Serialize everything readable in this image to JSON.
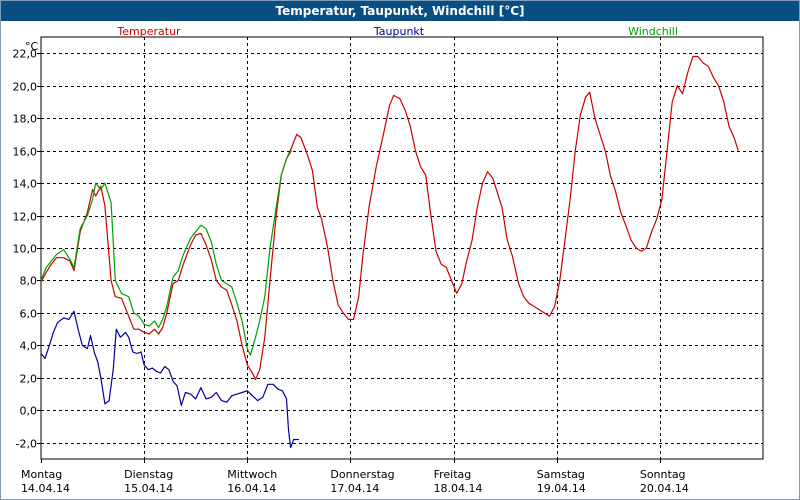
{
  "window": {
    "title": "Temperatur, Taupunkt, Windchill [°C]"
  },
  "chart_data": {
    "type": "line",
    "title": "Temperatur, Taupunkt, Windchill [°C]",
    "ylabel": "°C",
    "ylim": [
      -3.0,
      23.0
    ],
    "yticks": [
      "22,0",
      "20,0",
      "18,0",
      "16,0",
      "14,0",
      "12,0",
      "10,0",
      "8,0",
      "6,0",
      "4,0",
      "2,0",
      "0,0",
      "-2,0"
    ],
    "ytick_values": [
      22,
      20,
      18,
      16,
      14,
      12,
      10,
      8,
      6,
      4,
      2,
      0,
      -2
    ],
    "x_unit": "days since Montag 14.04.14 00:00",
    "xlim": [
      0,
      7.0
    ],
    "grid": true,
    "days": [
      {
        "weekday": "Montag",
        "date": "14.04.14"
      },
      {
        "weekday": "Dienstag",
        "date": "15.04.14"
      },
      {
        "weekday": "Mittwoch",
        "date": "16.04.14"
      },
      {
        "weekday": "Donnerstag",
        "date": "17.04.14"
      },
      {
        "weekday": "Freitag",
        "date": "18.04.14"
      },
      {
        "weekday": "Samstag",
        "date": "19.04.14"
      },
      {
        "weekday": "Sonntag",
        "date": "20.04.14"
      }
    ],
    "series": [
      {
        "name": "Temperatur",
        "color": "#cc0000",
        "points": [
          [
            0.0,
            7.9
          ],
          [
            0.05,
            8.5
          ],
          [
            0.1,
            9.0
          ],
          [
            0.15,
            9.4
          ],
          [
            0.22,
            9.4
          ],
          [
            0.28,
            9.2
          ],
          [
            0.32,
            8.6
          ],
          [
            0.38,
            11.0
          ],
          [
            0.45,
            12.2
          ],
          [
            0.5,
            13.6
          ],
          [
            0.53,
            13.2
          ],
          [
            0.58,
            13.8
          ],
          [
            0.62,
            12.6
          ],
          [
            0.68,
            8.0
          ],
          [
            0.72,
            7.0
          ],
          [
            0.78,
            6.9
          ],
          [
            0.85,
            5.8
          ],
          [
            0.9,
            5.0
          ],
          [
            0.95,
            5.0
          ],
          [
            1.0,
            4.8
          ],
          [
            1.05,
            4.7
          ],
          [
            1.1,
            5.0
          ],
          [
            1.14,
            4.7
          ],
          [
            1.18,
            5.1
          ],
          [
            1.22,
            6.0
          ],
          [
            1.28,
            7.8
          ],
          [
            1.33,
            8.0
          ],
          [
            1.38,
            9.0
          ],
          [
            1.45,
            10.2
          ],
          [
            1.5,
            10.8
          ],
          [
            1.55,
            10.9
          ],
          [
            1.6,
            10.2
          ],
          [
            1.65,
            9.3
          ],
          [
            1.7,
            8.0
          ],
          [
            1.75,
            7.6
          ],
          [
            1.8,
            7.4
          ],
          [
            1.85,
            6.5
          ],
          [
            1.9,
            5.5
          ],
          [
            1.95,
            4.0
          ],
          [
            2.0,
            2.8
          ],
          [
            2.05,
            2.3
          ],
          [
            2.08,
            1.9
          ],
          [
            2.12,
            2.5
          ],
          [
            2.17,
            4.5
          ],
          [
            2.22,
            8.0
          ],
          [
            2.28,
            12.0
          ],
          [
            2.33,
            14.5
          ],
          [
            2.38,
            15.5
          ],
          [
            2.43,
            16.2
          ],
          [
            2.48,
            17.0
          ],
          [
            2.52,
            16.8
          ],
          [
            2.58,
            15.8
          ],
          [
            2.63,
            14.8
          ],
          [
            2.68,
            12.5
          ],
          [
            2.72,
            11.8
          ],
          [
            2.78,
            10.0
          ],
          [
            2.83,
            8.0
          ],
          [
            2.88,
            6.5
          ],
          [
            2.93,
            6.0
          ],
          [
            2.98,
            5.6
          ],
          [
            3.03,
            5.6
          ],
          [
            3.08,
            7.0
          ],
          [
            3.12,
            9.5
          ],
          [
            3.18,
            12.5
          ],
          [
            3.25,
            15.0
          ],
          [
            3.32,
            17.0
          ],
          [
            3.38,
            18.8
          ],
          [
            3.42,
            19.4
          ],
          [
            3.48,
            19.2
          ],
          [
            3.53,
            18.5
          ],
          [
            3.58,
            17.5
          ],
          [
            3.63,
            16.0
          ],
          [
            3.68,
            15.0
          ],
          [
            3.73,
            14.5
          ],
          [
            3.78,
            12.0
          ],
          [
            3.83,
            9.8
          ],
          [
            3.88,
            9.0
          ],
          [
            3.93,
            8.8
          ],
          [
            3.98,
            8.0
          ],
          [
            4.03,
            7.2
          ],
          [
            4.08,
            7.8
          ],
          [
            4.12,
            9.0
          ],
          [
            4.18,
            10.5
          ],
          [
            4.23,
            12.5
          ],
          [
            4.28,
            14.0
          ],
          [
            4.33,
            14.7
          ],
          [
            4.38,
            14.3
          ],
          [
            4.42,
            13.5
          ],
          [
            4.47,
            12.5
          ],
          [
            4.52,
            10.5
          ],
          [
            4.57,
            9.5
          ],
          [
            4.63,
            7.8
          ],
          [
            4.68,
            7.0
          ],
          [
            4.73,
            6.6
          ],
          [
            4.78,
            6.4
          ],
          [
            4.83,
            6.2
          ],
          [
            4.88,
            6.0
          ],
          [
            4.93,
            5.8
          ],
          [
            4.98,
            6.4
          ],
          [
            5.03,
            8.0
          ],
          [
            5.08,
            10.5
          ],
          [
            5.13,
            13.0
          ],
          [
            5.18,
            16.0
          ],
          [
            5.23,
            18.2
          ],
          [
            5.28,
            19.3
          ],
          [
            5.32,
            19.6
          ],
          [
            5.37,
            18.0
          ],
          [
            5.42,
            17.0
          ],
          [
            5.47,
            16.0
          ],
          [
            5.52,
            14.5
          ],
          [
            5.57,
            13.5
          ],
          [
            5.62,
            12.2
          ],
          [
            5.67,
            11.4
          ],
          [
            5.72,
            10.5
          ],
          [
            5.77,
            10.0
          ],
          [
            5.82,
            9.8
          ],
          [
            5.87,
            10.0
          ],
          [
            5.92,
            11.0
          ],
          [
            5.97,
            11.8
          ],
          [
            6.02,
            13.0
          ],
          [
            6.07,
            16.0
          ],
          [
            6.12,
            19.0
          ],
          [
            6.17,
            20.0
          ],
          [
            6.22,
            19.5
          ],
          [
            6.27,
            20.8
          ],
          [
            6.32,
            21.8
          ],
          [
            6.37,
            21.8
          ],
          [
            6.42,
            21.4
          ],
          [
            6.47,
            21.2
          ],
          [
            6.52,
            20.5
          ],
          [
            6.57,
            20.0
          ],
          [
            6.62,
            19.0
          ],
          [
            6.67,
            17.5
          ],
          [
            6.72,
            16.8
          ],
          [
            6.76,
            16.0
          ]
        ]
      },
      {
        "name": "Taupunkt",
        "color": "#0000a0",
        "points": [
          [
            0.0,
            3.5
          ],
          [
            0.04,
            3.2
          ],
          [
            0.08,
            4.0
          ],
          [
            0.12,
            4.8
          ],
          [
            0.16,
            5.4
          ],
          [
            0.22,
            5.7
          ],
          [
            0.27,
            5.6
          ],
          [
            0.32,
            6.1
          ],
          [
            0.36,
            5.0
          ],
          [
            0.4,
            4.0
          ],
          [
            0.45,
            3.8
          ],
          [
            0.48,
            4.6
          ],
          [
            0.52,
            3.5
          ],
          [
            0.55,
            3.0
          ],
          [
            0.58,
            2.0
          ],
          [
            0.62,
            0.4
          ],
          [
            0.66,
            0.6
          ],
          [
            0.7,
            2.5
          ],
          [
            0.73,
            5.0
          ],
          [
            0.77,
            4.5
          ],
          [
            0.82,
            4.8
          ],
          [
            0.85,
            4.5
          ],
          [
            0.89,
            3.6
          ],
          [
            0.93,
            3.5
          ],
          [
            0.97,
            3.6
          ],
          [
            1.0,
            2.8
          ],
          [
            1.04,
            2.5
          ],
          [
            1.08,
            2.6
          ],
          [
            1.12,
            2.4
          ],
          [
            1.16,
            2.3
          ],
          [
            1.2,
            2.7
          ],
          [
            1.24,
            2.5
          ],
          [
            1.28,
            1.8
          ],
          [
            1.32,
            1.5
          ],
          [
            1.36,
            0.3
          ],
          [
            1.4,
            1.1
          ],
          [
            1.45,
            1.0
          ],
          [
            1.5,
            0.7
          ],
          [
            1.55,
            1.4
          ],
          [
            1.6,
            0.7
          ],
          [
            1.65,
            0.8
          ],
          [
            1.7,
            1.1
          ],
          [
            1.75,
            0.6
          ],
          [
            1.8,
            0.5
          ],
          [
            1.85,
            0.9
          ],
          [
            1.9,
            1.0
          ],
          [
            1.95,
            1.1
          ],
          [
            2.0,
            1.2
          ],
          [
            2.05,
            0.9
          ],
          [
            2.1,
            0.6
          ],
          [
            2.15,
            0.8
          ],
          [
            2.2,
            1.6
          ],
          [
            2.25,
            1.6
          ],
          [
            2.3,
            1.3
          ],
          [
            2.34,
            1.2
          ],
          [
            2.38,
            0.7
          ],
          [
            2.4,
            -1.2
          ],
          [
            2.42,
            -2.3
          ],
          [
            2.45,
            -1.8
          ],
          [
            2.5,
            -1.8
          ]
        ]
      },
      {
        "name": "Windchill",
        "color": "#00a000",
        "points": [
          [
            0.0,
            8.0
          ],
          [
            0.05,
            8.8
          ],
          [
            0.1,
            9.2
          ],
          [
            0.15,
            9.6
          ],
          [
            0.22,
            9.9
          ],
          [
            0.28,
            9.3
          ],
          [
            0.32,
            8.8
          ],
          [
            0.38,
            11.2
          ],
          [
            0.45,
            12.0
          ],
          [
            0.5,
            13.0
          ],
          [
            0.53,
            14.0
          ],
          [
            0.58,
            13.6
          ],
          [
            0.62,
            14.0
          ],
          [
            0.68,
            12.8
          ],
          [
            0.72,
            8.0
          ],
          [
            0.78,
            7.2
          ],
          [
            0.85,
            7.0
          ],
          [
            0.9,
            6.0
          ],
          [
            0.95,
            5.8
          ],
          [
            1.0,
            5.3
          ],
          [
            1.05,
            5.2
          ],
          [
            1.1,
            5.5
          ],
          [
            1.14,
            5.1
          ],
          [
            1.18,
            5.6
          ],
          [
            1.22,
            6.4
          ],
          [
            1.28,
            8.2
          ],
          [
            1.33,
            8.6
          ],
          [
            1.38,
            9.6
          ],
          [
            1.45,
            10.6
          ],
          [
            1.5,
            11.0
          ],
          [
            1.55,
            11.4
          ],
          [
            1.6,
            11.2
          ],
          [
            1.65,
            10.4
          ],
          [
            1.7,
            9.0
          ],
          [
            1.75,
            8.0
          ],
          [
            1.8,
            7.8
          ],
          [
            1.85,
            7.6
          ],
          [
            1.9,
            6.6
          ],
          [
            1.95,
            5.5
          ],
          [
            2.0,
            3.8
          ],
          [
            2.03,
            3.4
          ],
          [
            2.08,
            4.5
          ],
          [
            2.12,
            5.5
          ],
          [
            2.17,
            7.0
          ],
          [
            2.22,
            10.0
          ],
          [
            2.28,
            12.5
          ],
          [
            2.33,
            14.5
          ],
          [
            2.38,
            15.5
          ],
          [
            2.43,
            16.0
          ]
        ]
      }
    ]
  }
}
